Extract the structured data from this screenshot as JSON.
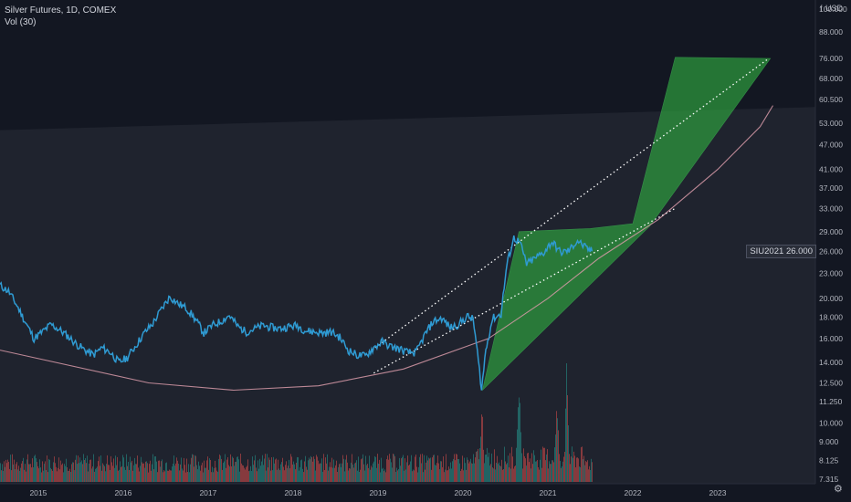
{
  "header": {
    "symbol_line": "Silver Futures, 1D, COMEX",
    "indicator_line": "Vol (30)"
  },
  "price_scale": {
    "lock_label": "f",
    "unit_label": "USD",
    "badge_symbol": "SIU2021",
    "badge_value": "26.000"
  },
  "colors": {
    "background": "#131722",
    "price_line": "#2f9bd3",
    "green_zone": "#2e9e3e",
    "pink_curve": "#d89aa8",
    "volume_up": "#26a69a",
    "volume_down": "#ef5350",
    "trendline": "#ffffff"
  },
  "icons": {
    "lock": "lock-icon",
    "settings": "gear-icon"
  },
  "chart_data": {
    "type": "line",
    "title": "Silver Futures, 1D, COMEX",
    "ylabel": "USD",
    "y_scale": "log",
    "ylim": [
      7.0,
      105.0
    ],
    "y_ticks": [
      "100.000",
      "88.000",
      "76.000",
      "68.000",
      "60.500",
      "53.000",
      "47.000",
      "41.000",
      "37.000",
      "33.000",
      "29.000",
      "26.000",
      "23.000",
      "20.000",
      "18.000",
      "16.000",
      "14.000",
      "12.500",
      "11.250",
      "10.000",
      "9.000",
      "8.125",
      "7.315"
    ],
    "y_tick_values": [
      100,
      88,
      76,
      68,
      60.5,
      53,
      47,
      41,
      37,
      33,
      29,
      26,
      23,
      20,
      18,
      16,
      14,
      12.5,
      11.25,
      10,
      9,
      8.125,
      7.315
    ],
    "x_ticks": [
      "2015",
      "2016",
      "2017",
      "2018",
      "2019",
      "2020",
      "2021",
      "2022",
      "2023"
    ],
    "x_tick_values": [
      2015,
      2016,
      2017,
      2018,
      2019,
      2020,
      2021,
      2022,
      2023
    ],
    "xlim": [
      2014.55,
      2024.15
    ],
    "series": [
      {
        "name": "SIU2021",
        "x": [
          2014.55,
          2014.65,
          2014.75,
          2014.85,
          2014.95,
          2015.05,
          2015.15,
          2015.25,
          2015.35,
          2015.45,
          2015.55,
          2015.65,
          2015.75,
          2015.85,
          2015.95,
          2016.05,
          2016.15,
          2016.25,
          2016.35,
          2016.45,
          2016.55,
          2016.65,
          2016.75,
          2016.85,
          2016.95,
          2017.05,
          2017.15,
          2017.25,
          2017.35,
          2017.45,
          2017.55,
          2017.65,
          2017.75,
          2017.85,
          2017.95,
          2018.05,
          2018.15,
          2018.25,
          2018.35,
          2018.45,
          2018.55,
          2018.65,
          2018.75,
          2018.85,
          2018.95,
          2019.05,
          2019.15,
          2019.25,
          2019.35,
          2019.45,
          2019.55,
          2019.65,
          2019.75,
          2019.85,
          2019.95,
          2020.05,
          2020.12,
          2020.17,
          2020.22,
          2020.27,
          2020.35,
          2020.45,
          2020.52,
          2020.6,
          2020.67,
          2020.75,
          2020.85,
          2020.95,
          2021.05,
          2021.15,
          2021.25,
          2021.35,
          2021.45,
          2021.52
        ],
        "values": [
          21.5,
          20.8,
          19.2,
          17.5,
          16.0,
          16.6,
          17.3,
          16.8,
          16.2,
          15.5,
          15.0,
          14.6,
          15.2,
          14.8,
          14.0,
          14.4,
          15.4,
          16.5,
          17.4,
          18.8,
          20.2,
          19.4,
          18.9,
          17.8,
          16.5,
          17.2,
          17.6,
          18.2,
          17.1,
          16.6,
          16.9,
          17.2,
          17.0,
          16.9,
          17.1,
          17.2,
          16.7,
          16.6,
          16.5,
          16.6,
          16.1,
          15.0,
          14.6,
          14.5,
          15.2,
          15.7,
          15.3,
          15.1,
          14.8,
          14.8,
          16.3,
          17.6,
          17.9,
          17.0,
          17.3,
          18.1,
          17.8,
          14.8,
          12.0,
          15.0,
          17.9,
          18.3,
          24.2,
          28.0,
          27.3,
          24.2,
          25.0,
          25.8,
          27.4,
          25.8,
          26.1,
          27.6,
          26.4,
          26.0
        ]
      }
    ],
    "volume_series": {
      "name": "Vol (30)",
      "note_levels": "relative volume 0-1",
      "x_start": 2014.55,
      "x_end": 2021.52,
      "peaks_x": [
        2020.22,
        2020.66,
        2021.1,
        2021.22
      ],
      "peaks_rel": [
        0.58,
        1.0,
        0.7,
        0.92
      ]
    },
    "annotations": [
      {
        "kind": "trendline",
        "style": "dotted",
        "points": [
          [
            2018.85,
            14.6
          ],
          [
            2023.6,
            76.0
          ]
        ]
      },
      {
        "kind": "trendline",
        "style": "dotted",
        "points": [
          [
            2018.95,
            13.2
          ],
          [
            2022.5,
            33.0
          ]
        ]
      },
      {
        "kind": "parabola",
        "color": "pink",
        "points": [
          [
            2014.55,
            15.0
          ],
          [
            2016.3,
            12.5
          ],
          [
            2017.3,
            12.0
          ],
          [
            2018.3,
            12.3
          ],
          [
            2019.3,
            13.5
          ],
          [
            2020.3,
            16.0
          ],
          [
            2021.0,
            20.0
          ],
          [
            2021.6,
            25.0
          ],
          [
            2022.3,
            31.0
          ],
          [
            2023.0,
            41.0
          ],
          [
            2023.5,
            52.0
          ],
          [
            2023.65,
            58.5
          ]
        ]
      },
      {
        "kind": "zone",
        "color": "green",
        "points": [
          [
            2020.23,
            12.0
          ],
          [
            2020.66,
            29.0
          ],
          [
            2021.5,
            29.5
          ],
          [
            2022.0,
            30.3
          ],
          [
            2022.5,
            76.5
          ],
          [
            2023.62,
            76.0
          ],
          [
            2022.2,
            29.9
          ],
          [
            2020.23,
            12.0
          ]
        ]
      },
      {
        "kind": "band",
        "color": "grey",
        "points": [
          [
            2014.55,
            51.0
          ],
          [
            2024.15,
            58.0
          ]
        ]
      }
    ]
  }
}
